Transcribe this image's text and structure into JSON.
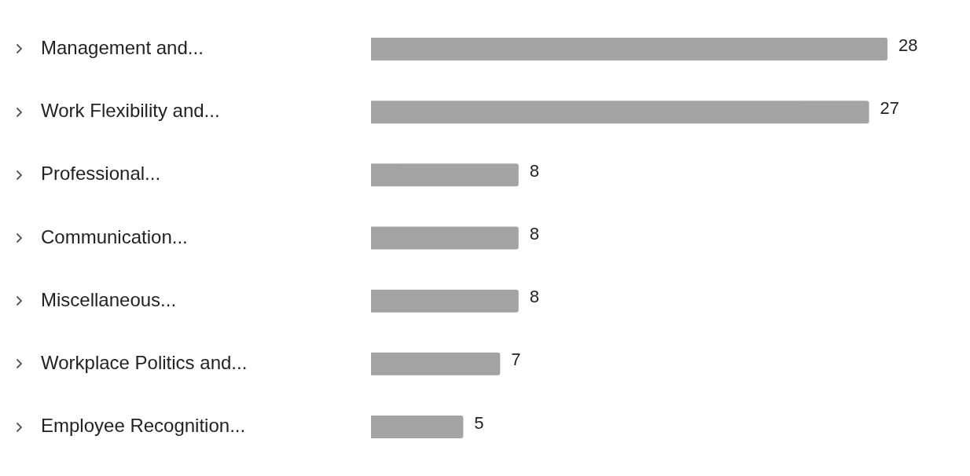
{
  "chart_data": {
    "type": "bar",
    "orientation": "horizontal",
    "categories": [
      "Management and...",
      "Work Flexibility and...",
      "Professional...",
      "Communication...",
      "Miscellaneous...",
      "Workplace Politics and...",
      "Employee Recognition..."
    ],
    "values": [
      28,
      27,
      8,
      8,
      8,
      7,
      5
    ],
    "color": "#a3a3a3",
    "data_labels": true,
    "legend": false
  }
}
